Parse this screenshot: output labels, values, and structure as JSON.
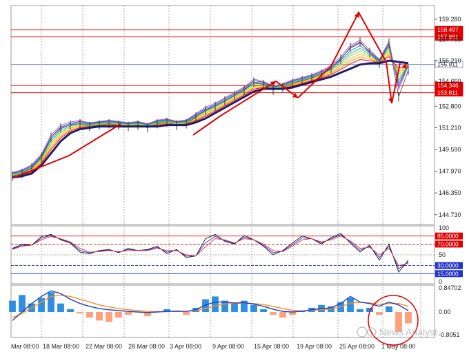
{
  "colors": {
    "price_line": "#1d1d6e",
    "ribbon": [
      "#ff0000",
      "#ff8c00",
      "#e6c400",
      "#8fd14f",
      "#32b06e",
      "#1f8ad0",
      "#5b3fbf",
      "#c060c0"
    ],
    "red": "#e00000",
    "blue_line": "#2233cc",
    "grid": "#9a9a9a",
    "panel_border": "#9a9a9a",
    "macd_pos": "#2e8fe0",
    "macd_neg": "#ffa07a",
    "macd_line": "#1f3fbf",
    "signal_line": "#ff8c1a",
    "stoch_black": "#111111",
    "stoch_blue": "#2a2ad0",
    "stoch_red": "#e03030"
  },
  "price_axis": {
    "ticks": [
      "159.280",
      "157.750",
      "156.210",
      "154.660",
      "152.800",
      "151.210",
      "149.590",
      "147.970",
      "146.350",
      "144.730"
    ]
  },
  "horizontal_levels": [
    {
      "value": "158.497",
      "color": "#e00000",
      "label_bg": "#e00000",
      "label_fg": "#ffffff"
    },
    {
      "value": "157.961",
      "color": "#e00000",
      "label_bg": "#e00000",
      "label_fg": "#ffffff"
    },
    {
      "value": "155.911",
      "color": "#7a8ad0",
      "label_bg": "#ffffff",
      "label_fg": "#222222"
    },
    {
      "value": "154.346",
      "color": "#e00000",
      "label_bg": "#e00000",
      "label_fg": "#ffffff"
    },
    {
      "value": "153.811",
      "color": "#e00000",
      "label_bg": "#e00000",
      "label_fg": "#ffffff"
    }
  ],
  "osc_axis": {
    "ticks": [
      "100",
      "50",
      "0"
    ],
    "levels": [
      {
        "value": "85.0000",
        "color": "#e00000",
        "label_bg": "#e00000",
        "label_fg": "#ffffff"
      },
      {
        "value": "70.0000",
        "color": "#e00000",
        "label_bg": "#e00000",
        "label_fg": "#ffffff"
      },
      {
        "value": "30.0000",
        "color": "#2233cc",
        "label_bg": "#2233cc",
        "label_fg": "#ffffff"
      },
      {
        "value": "15.0000",
        "color": "#2233cc",
        "label_bg": "#2233cc",
        "label_fg": "#ffffff"
      }
    ]
  },
  "macd_axis": {
    "ticks": [
      "0.84702",
      "0.00",
      "-0.8051"
    ]
  },
  "date_labels": [
    "Mar 08:00",
    "18 Mar 08:00",
    "22 Mar 08:00",
    "28 Mar 08:00",
    "3 Apr 08:00",
    "9 Apr 08:00",
    "15 Apr 08:00",
    "19 Apr 08:00",
    "25 Apr 08:00",
    "1 May 08:00"
  ],
  "watermark": "News Analyst",
  "chart_data": {
    "type": "line",
    "title": "",
    "xlabel": "",
    "ylabel": "",
    "x": [
      "Mar 08:00",
      "18 Mar 08:00",
      "22 Mar 08:00",
      "28 Mar 08:00",
      "3 Apr 08:00",
      "9 Apr 08:00",
      "15 Apr 08:00",
      "19 Apr 08:00",
      "25 Apr 08:00",
      "1 May 08:00"
    ],
    "ylim": [
      144.0,
      160.3
    ],
    "grid": true,
    "price_close": [
      147.6,
      147.8,
      148.2,
      149.0,
      150.5,
      151.2,
      151.4,
      151.5,
      151.3,
      151.4,
      151.5,
      151.4,
      151.3,
      151.4,
      151.2,
      151.5,
      151.6,
      151.4,
      151.5,
      152.0,
      152.5,
      152.8,
      153.2,
      153.6,
      154.0,
      154.6,
      154.4,
      154.0,
      154.2,
      154.5,
      154.7,
      154.9,
      155.2,
      155.6,
      156.3,
      157.2,
      157.6,
      156.8,
      156.0,
      157.5,
      153.5,
      155.5
    ],
    "slow_ma": [
      147.5,
      147.6,
      147.8,
      148.4,
      149.3,
      150.2,
      150.8,
      151.1,
      151.2,
      151.3,
      151.3,
      151.3,
      151.3,
      151.3,
      151.3,
      151.3,
      151.4,
      151.4,
      151.4,
      151.6,
      151.9,
      152.3,
      152.7,
      153.1,
      153.5,
      153.9,
      154.1,
      154.1,
      154.1,
      154.2,
      154.4,
      154.6,
      154.8,
      155.0,
      155.3,
      155.6,
      155.9,
      156.0,
      156.0,
      156.2,
      156.1,
      156.0
    ],
    "stoch_k": [
      62,
      70,
      68,
      84,
      88,
      78,
      72,
      55,
      52,
      58,
      60,
      54,
      62,
      58,
      60,
      66,
      52,
      60,
      45,
      48,
      80,
      88,
      75,
      70,
      86,
      78,
      66,
      50,
      58,
      72,
      85,
      80,
      70,
      82,
      90,
      72,
      55,
      68,
      40,
      70,
      18,
      40
    ],
    "stoch_d": [
      60,
      66,
      68,
      78,
      84,
      80,
      74,
      62,
      55,
      56,
      58,
      56,
      58,
      58,
      58,
      62,
      58,
      58,
      50,
      48,
      65,
      80,
      78,
      72,
      80,
      78,
      70,
      58,
      56,
      66,
      78,
      80,
      74,
      78,
      85,
      76,
      62,
      64,
      50,
      62,
      30,
      34
    ],
    "macd_hist": [
      0.4,
      0.6,
      0.3,
      0.5,
      0.7,
      0.3,
      0.1,
      -0.05,
      -0.2,
      -0.3,
      -0.35,
      -0.2,
      -0.1,
      0.0,
      -0.15,
      0.0,
      0.1,
      0.05,
      -0.1,
      0.15,
      0.45,
      0.55,
      0.4,
      0.3,
      0.4,
      0.25,
      0.1,
      -0.1,
      -0.2,
      -0.1,
      0.05,
      0.15,
      0.25,
      0.2,
      0.35,
      0.5,
      0.1,
      0.15,
      -0.1,
      0.2,
      -0.7,
      -0.4
    ],
    "macd_line": [
      -0.3,
      0.0,
      0.3,
      0.55,
      0.75,
      0.65,
      0.45,
      0.3,
      0.2,
      0.12,
      0.08,
      0.05,
      0.02,
      0.0,
      -0.02,
      0.0,
      0.02,
      0.03,
      0.02,
      0.08,
      0.25,
      0.35,
      0.35,
      0.32,
      0.33,
      0.28,
      0.2,
      0.1,
      0.02,
      0.0,
      0.03,
      0.08,
      0.12,
      0.15,
      0.3,
      0.55,
      0.35,
      0.3,
      0.2,
      0.35,
      0.25,
      0.05
    ],
    "signal_line": [
      -0.2,
      -0.05,
      0.15,
      0.35,
      0.55,
      0.6,
      0.55,
      0.45,
      0.35,
      0.25,
      0.18,
      0.12,
      0.08,
      0.05,
      0.02,
      0.01,
      0.01,
      0.02,
      0.02,
      0.05,
      0.12,
      0.22,
      0.28,
      0.3,
      0.32,
      0.3,
      0.26,
      0.2,
      0.12,
      0.06,
      0.04,
      0.06,
      0.08,
      0.11,
      0.18,
      0.32,
      0.34,
      0.32,
      0.27,
      0.3,
      0.3,
      0.2
    ]
  }
}
